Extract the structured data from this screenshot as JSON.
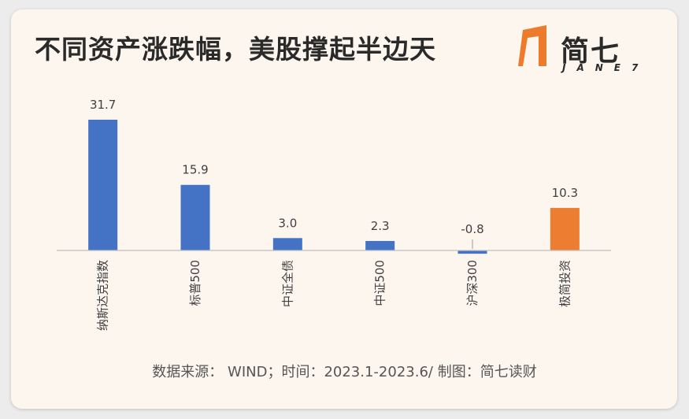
{
  "title": "不同资产涨跌幅，美股撑起半边天",
  "logo": {
    "name": "简七",
    "sub": "JANE7",
    "mark_color": "#ee7a2c"
  },
  "source": "数据来源： WIND；时间：2023.1-2023.6/ 制图：简七读财",
  "colors": {
    "blue": "#4472c4",
    "orange": "#ed7d31",
    "axis": "#bfbfbf",
    "label": "#404040"
  },
  "chart_data": {
    "type": "bar",
    "categories": [
      "纳斯达克指数",
      "标普500",
      "中证全债",
      "中证500",
      "沪深300",
      "极简投资"
    ],
    "values": [
      31.7,
      15.9,
      3.0,
      2.3,
      -0.8,
      10.3
    ],
    "labels": [
      "31.7",
      "15.9",
      "3.0",
      "2.3",
      "-0.8",
      "10.3"
    ],
    "bar_colors": [
      "#4472c4",
      "#4472c4",
      "#4472c4",
      "#4472c4",
      "#4472c4",
      "#ed7d31"
    ],
    "title": "",
    "xlabel": "",
    "ylabel": "",
    "ylim": [
      -1,
      31.7
    ],
    "grid": false,
    "legend": "none"
  }
}
